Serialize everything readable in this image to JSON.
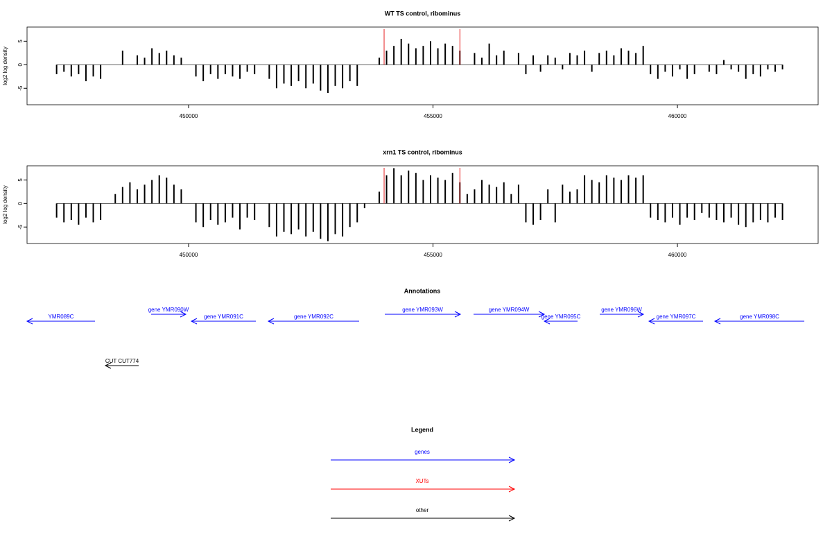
{
  "chart_data": [
    {
      "type": "bar",
      "title": "WT TS control, ribominus",
      "y_label": "log2 log density",
      "x": [
        447300,
        447450,
        447600,
        447750,
        447900,
        448050,
        448200,
        448350,
        448500,
        448650,
        448800,
        448950,
        449100,
        449250,
        449400,
        449550,
        449700,
        449850,
        450000,
        450150,
        450300,
        450450,
        450600,
        450750,
        450900,
        451050,
        451200,
        451350,
        451500,
        451650,
        451800,
        451950,
        452100,
        452250,
        452400,
        452550,
        452700,
        452850,
        453000,
        453150,
        453300,
        453450,
        453600,
        453750,
        453900,
        454050,
        454200,
        454350,
        454500,
        454650,
        454800,
        454950,
        455100,
        455250,
        455400,
        455550,
        455700,
        455850,
        456000,
        456150,
        456300,
        456450,
        456600,
        456750,
        456900,
        457050,
        457200,
        457350,
        457500,
        457650,
        457800,
        457950,
        458100,
        458250,
        458400,
        458550,
        458700,
        458850,
        459000,
        459150,
        459300,
        459450,
        459600,
        459750,
        459900,
        460050,
        460200,
        460350,
        460500,
        460650,
        460800,
        460950,
        461100,
        461250,
        461400,
        461550,
        461700,
        461850,
        462000,
        462150
      ],
      "values": [
        -2,
        -1.5,
        -2.5,
        -2,
        -3.5,
        -2.5,
        -3,
        0,
        0,
        3,
        0,
        2,
        1.5,
        3.5,
        2.5,
        3,
        2,
        1.5,
        0,
        -2.5,
        -3.5,
        -2,
        -3,
        -2,
        -2.5,
        -3,
        -1.5,
        -2,
        0,
        -3,
        -5,
        -4,
        -4.5,
        -3.5,
        -5,
        -4,
        -5.5,
        -6,
        -4.5,
        -5,
        -3.5,
        -4.5,
        0,
        0,
        1.5,
        3,
        4,
        5.5,
        4.5,
        3.5,
        4,
        5,
        3.5,
        4.5,
        4,
        3,
        0,
        2.5,
        1.5,
        4.5,
        2,
        3,
        0,
        2.5,
        -2,
        2,
        -1.5,
        2,
        1.5,
        -1,
        2.5,
        2,
        3,
        -1.5,
        2.5,
        3,
        2,
        3.5,
        3,
        2.5,
        4,
        -2,
        -3,
        -1.5,
        -2.5,
        -1,
        -3,
        -2,
        0,
        -1.5,
        -2,
        1,
        -1,
        -1.5,
        -3,
        -2,
        -2.5,
        -1,
        -1.5,
        -1
      ],
      "color": "#000000",
      "markers": [
        454000,
        455550
      ],
      "marker_color": "#e41a1c",
      "xlim": [
        446695,
        462879
      ],
      "xticks": [
        450000,
        455000,
        460000
      ],
      "ylim": [
        -8.5,
        8
      ],
      "yticks": [
        -5,
        0,
        5
      ]
    },
    {
      "type": "bar",
      "title": "xrn1 TS control, ribominus",
      "y_label": "log2 log density",
      "x": [
        447300,
        447450,
        447600,
        447750,
        447900,
        448050,
        448200,
        448350,
        448500,
        448650,
        448800,
        448950,
        449100,
        449250,
        449400,
        449550,
        449700,
        449850,
        450000,
        450150,
        450300,
        450450,
        450600,
        450750,
        450900,
        451050,
        451200,
        451350,
        451500,
        451650,
        451800,
        451950,
        452100,
        452250,
        452400,
        452550,
        452700,
        452850,
        453000,
        453150,
        453300,
        453450,
        453600,
        453750,
        453900,
        454050,
        454200,
        454350,
        454500,
        454650,
        454800,
        454950,
        455100,
        455250,
        455400,
        455550,
        455700,
        455850,
        456000,
        456150,
        456300,
        456450,
        456600,
        456750,
        456900,
        457050,
        457200,
        457350,
        457500,
        457650,
        457800,
        457950,
        458100,
        458250,
        458400,
        458550,
        458700,
        458850,
        459000,
        459150,
        459300,
        459450,
        459600,
        459750,
        459900,
        460050,
        460200,
        460350,
        460500,
        460650,
        460800,
        460950,
        461100,
        461250,
        461400,
        461550,
        461700,
        461850,
        462000,
        462150
      ],
      "values": [
        -3,
        -4,
        -3.5,
        -4.5,
        -3,
        -4,
        -3.5,
        0,
        2,
        3.5,
        4.5,
        3,
        4,
        5,
        6,
        5.5,
        4,
        3,
        0,
        -4,
        -5,
        -3.5,
        -4.5,
        -4,
        -3,
        -5.5,
        -3,
        -3.5,
        0,
        -5,
        -7,
        -6,
        -6.5,
        -5.5,
        -7,
        -6,
        -7.5,
        -8,
        -6.5,
        -7,
        -5,
        -4,
        -1,
        0,
        2.5,
        6,
        7.5,
        6,
        7,
        6.5,
        5,
        6,
        5.5,
        5,
        6.5,
        4.5,
        2,
        3,
        5,
        4,
        3.5,
        4.5,
        2,
        4,
        -4,
        -4.5,
        -3.5,
        3,
        -4,
        4,
        2.5,
        3,
        6,
        5,
        4.5,
        6,
        5.5,
        5,
        6,
        5.5,
        6,
        -3,
        -3.5,
        -4,
        -3,
        -4.5,
        -3,
        -3.5,
        -2,
        -3,
        -3.5,
        -4,
        -3,
        -4.5,
        -5,
        -4,
        -3.5,
        -4,
        -3,
        -3.5
      ],
      "color": "#000000",
      "markers": [
        454000,
        455550
      ],
      "marker_color": "#e41a1c",
      "xlim": [
        446695,
        462879
      ],
      "xticks": [
        450000,
        455000,
        460000
      ],
      "ylim": [
        -8.5,
        8
      ],
      "yticks": [
        -5,
        0,
        5
      ]
    }
  ],
  "annotations": {
    "title": "Annotations",
    "features": [
      {
        "label": "YMR089C",
        "start": 446695,
        "end": 448085,
        "strand": "-",
        "kind": "genes"
      },
      {
        "label": "gene YMR090W",
        "start": 449234,
        "end": 449943,
        "strand": "+",
        "kind": "genes"
      },
      {
        "label": "gene YMR091C",
        "start": 450057,
        "end": 451376,
        "strand": "-",
        "kind": "genes"
      },
      {
        "label": "gene YMR092C",
        "start": 451631,
        "end": 453489,
        "strand": "-",
        "kind": "genes"
      },
      {
        "label": "gene YMR093W",
        "start": 454014,
        "end": 455560,
        "strand": "+",
        "kind": "genes"
      },
      {
        "label": "gene YMR094W",
        "start": 455830,
        "end": 457277,
        "strand": "+",
        "kind": "genes"
      },
      {
        "label": "gene YMR095C",
        "start": 457277,
        "end": 457957,
        "strand": "-",
        "kind": "genes"
      },
      {
        "label": "gene YMR096W",
        "start": 458411,
        "end": 459305,
        "strand": "+",
        "kind": "genes"
      },
      {
        "label": "gene YMR097C",
        "start": 459419,
        "end": 460525,
        "strand": "-",
        "kind": "genes"
      },
      {
        "label": "gene YMR098C",
        "start": 460766,
        "end": 462596,
        "strand": "-",
        "kind": "genes"
      },
      {
        "label": "CUT CUT774",
        "start": 448298,
        "end": 448979,
        "strand": "-",
        "kind": "other"
      }
    ]
  },
  "legend": {
    "title": "Legend",
    "items": [
      {
        "name": "genes",
        "color": "#0000ff"
      },
      {
        "name": "XUTs",
        "color": "#ff0000"
      },
      {
        "name": "other",
        "color": "#000000"
      }
    ]
  }
}
